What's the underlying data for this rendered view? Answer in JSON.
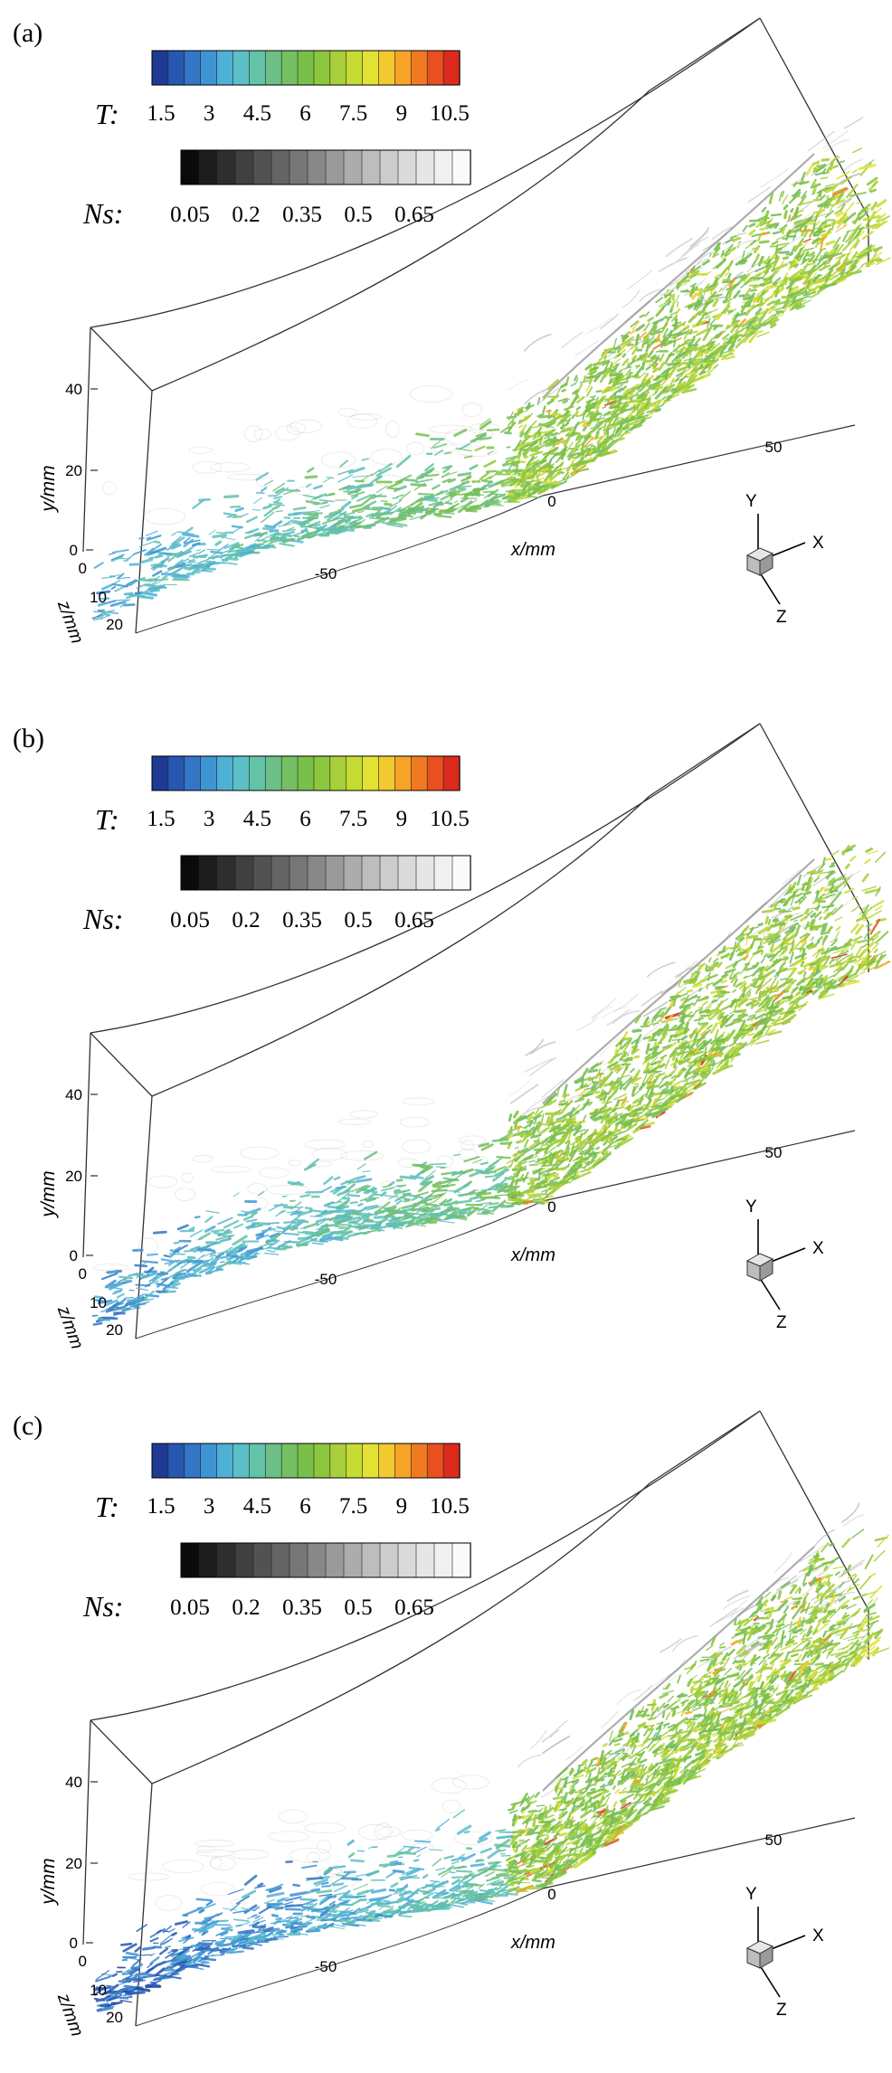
{
  "panels": [
    {
      "label": "(a)",
      "density": 1.0,
      "lower_cut": 0.22
    },
    {
      "label": "(b)",
      "density": 1.08,
      "lower_cut": 0.18
    },
    {
      "label": "(c)",
      "density": 1.18,
      "lower_cut": 0.1
    }
  ],
  "colorbars": {
    "T": {
      "name": "T:",
      "ticks": [
        "1.5",
        "3",
        "4.5",
        "6",
        "7.5",
        "9",
        "10.5"
      ],
      "colors": [
        "#1f3a93",
        "#2857b2",
        "#3575c6",
        "#3f95d2",
        "#4fb0d6",
        "#5dbfc6",
        "#62c3a9",
        "#6bbf87",
        "#75bf63",
        "#79c04b",
        "#8cc63f",
        "#a9d03a",
        "#c7db35",
        "#e2e234",
        "#f3c930",
        "#f6a326",
        "#f07a22",
        "#e8501f",
        "#dc2a1d"
      ]
    },
    "Ns": {
      "name": "Ns:",
      "ticks": [
        "0.05",
        "0.2",
        "0.35",
        "0.5",
        "0.65"
      ],
      "colors": [
        "#0a0a0a",
        "#1c1c1c",
        "#2e2e2e",
        "#404040",
        "#525252",
        "#646464",
        "#767676",
        "#888888",
        "#9a9a9a",
        "#acacac",
        "#bdbdbd",
        "#cccccc",
        "#dadada",
        "#e6e6e6",
        "#f0f0f0",
        "#fafafa"
      ]
    }
  },
  "axes": {
    "y_label": "y/mm",
    "y_ticks": [
      "40",
      "20",
      "0"
    ],
    "x_label": "x/mm",
    "x_ticks": [
      "-50",
      "0",
      "50"
    ],
    "z_label": "z/mm",
    "z_ticks": [
      "0",
      "10",
      "20"
    ]
  },
  "triad": {
    "y": "Y",
    "x": "X",
    "z": "Z"
  }
}
